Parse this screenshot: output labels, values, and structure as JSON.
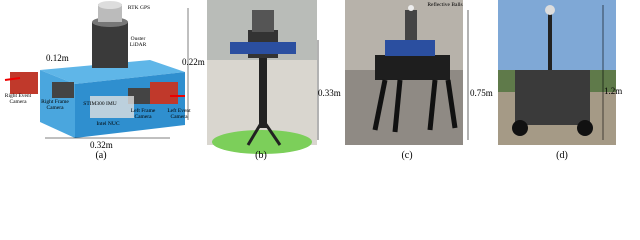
{
  "panels": [
    {
      "label": "(a)",
      "annotations": [
        "RTK GPS",
        "Ouster LiDAR",
        "0.12m",
        "0.22m",
        "Right Event Camera",
        "Right Frame Camera",
        "STIM300 IMU",
        "Intel NUC",
        "Left Frame Camera",
        "Left Event Camera",
        "0.32m"
      ]
    },
    {
      "label": "(b)",
      "annotations": [
        "0.33m"
      ]
    },
    {
      "label": "(c)",
      "annotations": [
        "Reflective Balls",
        "0.75m"
      ]
    },
    {
      "label": "(d)",
      "annotations": [
        "1.2m"
      ]
    }
  ]
}
